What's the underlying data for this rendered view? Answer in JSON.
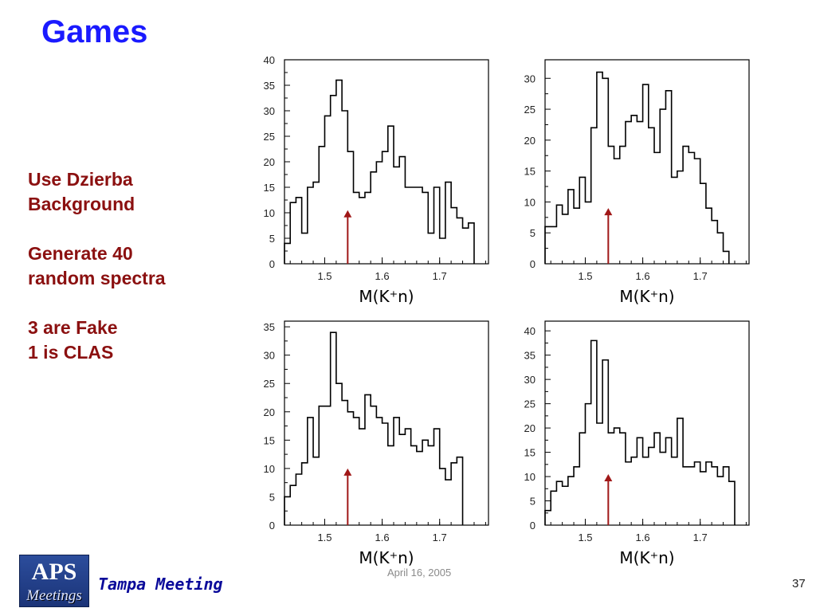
{
  "slide": {
    "title": "Games",
    "notes": [
      "Use Dzierba",
      "Background",
      "",
      "Generate 40",
      "random  spectra",
      "",
      "3 are Fake",
      "1 is CLAS"
    ],
    "footer": {
      "logo_text": "APS",
      "logo_subtext": "Meetings",
      "meeting": "Tampa Meeting",
      "date": "April 16, 2005",
      "page": "37"
    }
  },
  "colors": {
    "title": "#1a1aff",
    "notes": "#8b1010",
    "arrow": "#a01818",
    "histogram": "#000000"
  },
  "chart_data": [
    {
      "type": "histogram-step",
      "xlabel": "M(K⁺n)",
      "xlim": [
        1.43,
        1.785
      ],
      "ylim": [
        0,
        40
      ],
      "xticks": [
        "1.5",
        "1.6",
        "1.7"
      ],
      "yticks": [
        0,
        5,
        10,
        15,
        20,
        25,
        30,
        35,
        40
      ],
      "bin_start": 1.43,
      "bin_width": 0.01,
      "values": [
        4,
        12,
        13,
        6,
        15,
        16,
        23,
        29,
        33,
        36,
        30,
        22,
        14,
        13,
        14,
        18,
        20,
        22,
        27,
        19,
        21,
        15,
        15,
        15,
        14,
        6,
        15,
        5,
        16,
        11,
        9,
        7,
        8
      ],
      "arrow_x": 1.54,
      "arrow_y": 10.5
    },
    {
      "type": "histogram-step",
      "xlabel": "M(K⁺n)",
      "xlim": [
        1.43,
        1.785
      ],
      "ylim": [
        0,
        33
      ],
      "xticks": [
        "1.5",
        "1.6",
        "1.7"
      ],
      "yticks": [
        0,
        5,
        10,
        15,
        20,
        25,
        30
      ],
      "bin_start": 1.43,
      "bin_width": 0.01,
      "values": [
        6,
        6,
        9.5,
        8,
        12,
        9,
        14,
        10,
        22,
        31,
        30,
        19,
        17,
        19,
        23,
        24,
        23,
        29,
        22,
        18,
        25,
        28,
        14,
        15,
        19,
        18,
        17,
        13,
        9,
        7,
        5,
        2
      ],
      "arrow_x": 1.54,
      "arrow_y": 9
    },
    {
      "type": "histogram-step",
      "xlabel": "M(K⁺n)",
      "xlim": [
        1.43,
        1.785
      ],
      "ylim": [
        0,
        36
      ],
      "xticks": [
        "1.5",
        "1.6",
        "1.7"
      ],
      "yticks": [
        0,
        5,
        10,
        15,
        20,
        25,
        30,
        35
      ],
      "bin_start": 1.43,
      "bin_width": 0.01,
      "values": [
        5,
        7,
        9,
        11,
        19,
        12,
        21,
        21,
        34,
        25,
        22,
        20,
        19,
        17,
        23,
        21,
        19,
        18,
        14,
        19,
        16,
        17,
        14,
        13,
        15,
        14,
        17,
        10,
        8,
        11,
        12
      ],
      "arrow_x": 1.54,
      "arrow_y": 10
    },
    {
      "type": "histogram-step",
      "xlabel": "M(K⁺n)",
      "xlim": [
        1.43,
        1.785
      ],
      "ylim": [
        0,
        42
      ],
      "xticks": [
        "1.5",
        "1.6",
        "1.7"
      ],
      "yticks": [
        0,
        5,
        10,
        15,
        20,
        25,
        30,
        35,
        40
      ],
      "bin_start": 1.43,
      "bin_width": 0.01,
      "values": [
        3,
        7,
        9,
        8,
        10,
        12,
        19,
        25,
        38,
        21,
        34,
        19,
        20,
        19,
        13,
        14,
        18,
        14,
        16,
        19,
        15,
        18,
        14,
        22,
        12,
        12,
        13,
        11,
        13,
        12,
        10,
        12,
        9
      ],
      "arrow_x": 1.54,
      "arrow_y": 10.5
    }
  ]
}
